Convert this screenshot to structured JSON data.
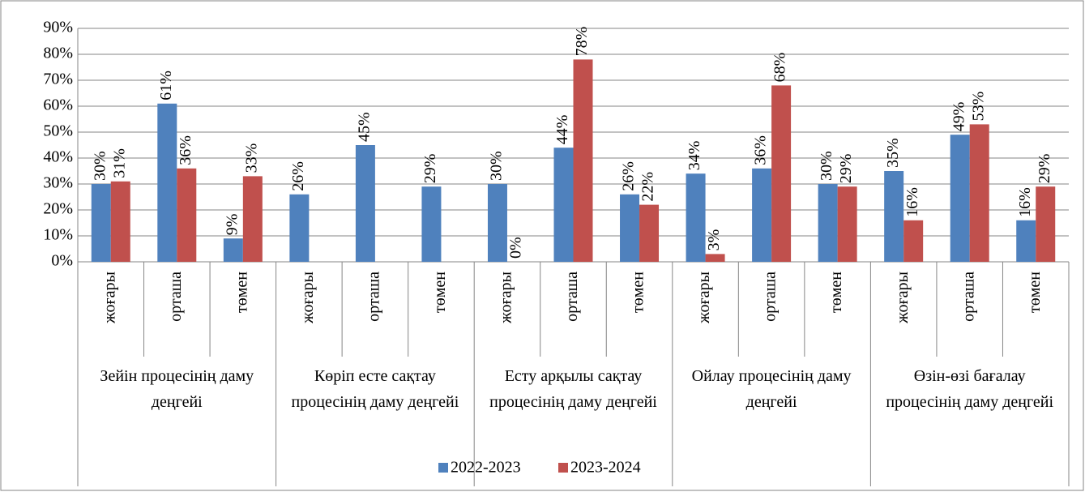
{
  "chart_data": {
    "type": "bar",
    "categories": [
      "жоғары",
      "орташа",
      "төмен",
      "жоғары",
      "орташа",
      "төмен",
      "жоғары",
      "орташа",
      "төмен",
      "жоғары",
      "орташа",
      "төмен",
      "жоғары",
      "орташа",
      "төмен"
    ],
    "groups": [
      "Зейін процесінің даму деңгейі",
      "Көріп есте сақтау процесінің даму деңгейі",
      "Есту арқылы сақтау процесінің даму деңгейі",
      "Ойлау процесінің даму деңгейі",
      "Өзін-өзі бағалау процесінің даму деңгейі"
    ],
    "series": [
      {
        "name": "2022-2023",
        "color": "#4f81bd",
        "values": [
          30,
          61,
          9,
          26,
          45,
          29,
          30,
          44,
          26,
          34,
          36,
          30,
          35,
          49,
          16
        ],
        "value_labels": [
          "30%",
          "61%",
          "9%",
          "26%",
          "45%",
          "29%",
          "30%",
          "44%",
          "26%",
          "34%",
          "36%",
          "30%",
          "35%",
          "49%",
          "16%"
        ]
      },
      {
        "name": "2023-2024",
        "color": "#c0504d",
        "values": [
          31,
          36,
          33,
          null,
          null,
          null,
          0,
          78,
          22,
          3,
          68,
          29,
          16,
          53,
          29
        ],
        "value_labels": [
          "31%",
          "36%",
          "33%",
          null,
          null,
          null,
          "0%",
          "78%",
          "22%",
          "3%",
          "68%",
          "29%",
          "16%",
          "53%",
          "29%"
        ]
      }
    ],
    "ylim": [
      0,
      90
    ],
    "yticks": [
      {
        "value": 0,
        "label": "0%"
      },
      {
        "value": 10,
        "label": "10%"
      },
      {
        "value": 20,
        "label": "20%"
      },
      {
        "value": 30,
        "label": "30%"
      },
      {
        "value": 40,
        "label": "40%"
      },
      {
        "value": 50,
        "label": "50%"
      },
      {
        "value": 60,
        "label": "60%"
      },
      {
        "value": 70,
        "label": "70%"
      },
      {
        "value": 80,
        "label": "80%"
      },
      {
        "value": 90,
        "label": "90%"
      }
    ],
    "grid": true,
    "legend": "bottom"
  }
}
